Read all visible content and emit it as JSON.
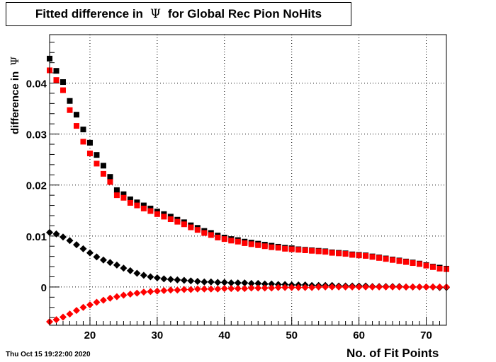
{
  "title": {
    "prefix": "Fitted difference in",
    "symbol": "Ψ",
    "suffix": "for Global Rec Pion NoHits"
  },
  "timestamp": "Thu Oct 15 19:22:00 2020",
  "chart_data": {
    "type": "scatter",
    "xlabel": "No. of Fit Points",
    "ylabel": "difference in",
    "ylabel_symbol": "Ψ",
    "xlim": [
      14,
      73
    ],
    "ylim": [
      -0.0075,
      0.0495
    ],
    "grid": true,
    "x_ticks": [
      20,
      30,
      40,
      50,
      60,
      70
    ],
    "x_tick_labels": [
      "20",
      "30",
      "40",
      "50",
      "60",
      "70"
    ],
    "y_ticks": [
      0,
      0.01,
      0.02,
      0.03,
      0.04
    ],
    "y_tick_labels": [
      "0",
      "0.01",
      "0.02",
      "0.03",
      "0.04"
    ],
    "colors": {
      "black": "#000000",
      "red": "#ff0000"
    },
    "x": [
      14,
      15,
      16,
      17,
      18,
      19,
      20,
      21,
      22,
      23,
      24,
      25,
      26,
      27,
      28,
      29,
      30,
      31,
      32,
      33,
      34,
      35,
      36,
      37,
      38,
      39,
      40,
      41,
      42,
      43,
      44,
      45,
      46,
      47,
      48,
      49,
      50,
      51,
      52,
      53,
      54,
      55,
      56,
      57,
      58,
      59,
      60,
      61,
      62,
      63,
      64,
      65,
      66,
      67,
      68,
      69,
      70,
      71,
      72,
      73
    ],
    "series": [
      {
        "color": "#000000",
        "marker": "square",
        "values": [
          0.0448,
          0.0424,
          0.0402,
          0.0365,
          0.0338,
          0.0309,
          0.0283,
          0.0259,
          0.0238,
          0.0216,
          0.019,
          0.0182,
          0.0172,
          0.0166,
          0.016,
          0.0154,
          0.0148,
          0.0143,
          0.0138,
          0.0132,
          0.0127,
          0.0121,
          0.0116,
          0.011,
          0.0106,
          0.0101,
          0.0097,
          0.0094,
          0.0092,
          0.0089,
          0.0087,
          0.0085,
          0.0083,
          0.0081,
          0.0079,
          0.0077,
          0.0076,
          0.0074,
          0.0073,
          0.0072,
          0.0071,
          0.007,
          0.0068,
          0.0067,
          0.0066,
          0.0064,
          0.0063,
          0.0062,
          0.006,
          0.0058,
          0.0056,
          0.0054,
          0.0052,
          0.005,
          0.0048,
          0.0046,
          0.0043,
          0.004,
          0.0038,
          0.0036
        ]
      },
      {
        "color": "#ff0000",
        "marker": "square",
        "values": [
          0.0425,
          0.0406,
          0.0386,
          0.0347,
          0.0316,
          0.0285,
          0.0262,
          0.0242,
          0.0222,
          0.0206,
          0.018,
          0.0175,
          0.0165,
          0.016,
          0.0154,
          0.0149,
          0.0143,
          0.0138,
          0.0133,
          0.0128,
          0.0123,
          0.0117,
          0.0112,
          0.0106,
          0.0102,
          0.0097,
          0.0094,
          0.0091,
          0.0089,
          0.0086,
          0.0084,
          0.0082,
          0.008,
          0.0078,
          0.0077,
          0.0075,
          0.0074,
          0.0073,
          0.0072,
          0.0071,
          0.007,
          0.0069,
          0.0067,
          0.0066,
          0.0065,
          0.0063,
          0.0062,
          0.0061,
          0.0059,
          0.0057,
          0.0055,
          0.0053,
          0.0051,
          0.0049,
          0.0047,
          0.0045,
          0.0042,
          0.0039,
          0.0036,
          0.0035
        ]
      },
      {
        "color": "#000000",
        "marker": "diamond",
        "values": [
          0.0107,
          0.0104,
          0.0098,
          0.0091,
          0.0083,
          0.0075,
          0.0067,
          0.0059,
          0.0053,
          0.0048,
          0.0043,
          0.0037,
          0.0032,
          0.0027,
          0.0023,
          0.002,
          0.0018,
          0.0016,
          0.0015,
          0.0014,
          0.0013,
          0.0012,
          0.0011,
          0.001,
          0.001,
          0.0009,
          0.0009,
          0.0008,
          0.0008,
          0.0008,
          0.0007,
          0.0007,
          0.0006,
          0.0006,
          0.0005,
          0.0005,
          0.0004,
          0.0004,
          0.0004,
          0.0003,
          0.0003,
          0.0003,
          0.0003,
          0.0002,
          0.0002,
          0.0002,
          0.0002,
          0.0002,
          0.0001,
          0.0001,
          0.0001,
          0.0001,
          0.0001,
          0.0,
          0.0,
          0.0,
          0.0,
          0.0,
          -0.0001,
          -0.0001
        ]
      },
      {
        "color": "#ff0000",
        "marker": "diamond",
        "values": [
          -0.0068,
          -0.0064,
          -0.0059,
          -0.0053,
          -0.0046,
          -0.004,
          -0.0035,
          -0.003,
          -0.0026,
          -0.0022,
          -0.0019,
          -0.0016,
          -0.0014,
          -0.0012,
          -0.001,
          -0.0009,
          -0.0008,
          -0.0007,
          -0.0006,
          -0.0006,
          -0.0005,
          -0.0005,
          -0.0004,
          -0.0004,
          -0.0004,
          -0.0004,
          -0.0003,
          -0.0003,
          -0.0003,
          -0.0003,
          -0.0002,
          -0.0002,
          -0.0002,
          -0.0002,
          -0.0001,
          -0.0001,
          -0.0001,
          -0.0001,
          -0.0001,
          -0.0001,
          0.0,
          0.0,
          0.0,
          0.0,
          0.0,
          0.0,
          0.0,
          0.0,
          0.0,
          0.0,
          0.0,
          0.0,
          0.0,
          0.0,
          0.0,
          0.0,
          0.0,
          0.0,
          0.0,
          0.0
        ]
      }
    ]
  }
}
